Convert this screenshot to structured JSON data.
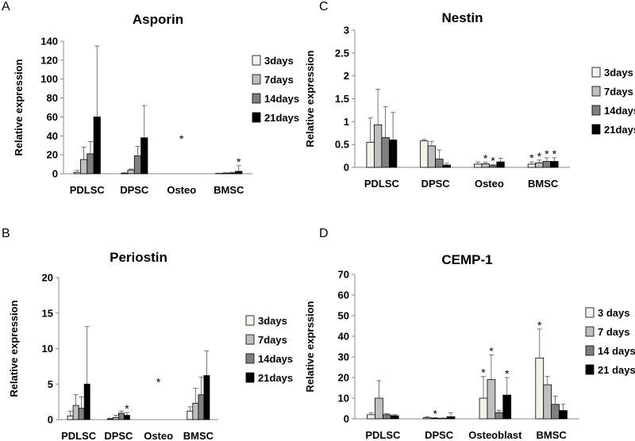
{
  "series_colors": [
    "#f2f2e8",
    "#bfbfbf",
    "#7f7f7f",
    "#000000"
  ],
  "chart_data": [
    {
      "panel_label": "A",
      "type": "bar",
      "title": "Asporin",
      "ylabel": "Relative expression",
      "ylim": [
        0,
        140
      ],
      "yticks": [
        0,
        20,
        40,
        60,
        80,
        100,
        120,
        140
      ],
      "categories": [
        "PDLSC",
        "DPSC",
        "Osteo",
        "BMSC"
      ],
      "series": [
        {
          "name": "3days",
          "values": [
            1.5,
            0.5,
            0,
            0.3
          ],
          "errors": [
            2,
            0.5,
            0,
            0.3
          ]
        },
        {
          "name": "7days",
          "values": [
            15,
            4,
            0,
            0.5
          ],
          "errors": [
            13,
            1,
            0,
            0.5
          ]
        },
        {
          "name": "14days",
          "values": [
            21,
            19,
            0,
            0.8
          ],
          "errors": [
            13,
            10,
            0,
            0.7
          ]
        },
        {
          "name": "21days",
          "values": [
            60,
            38,
            0,
            2.5
          ],
          "errors": [
            75,
            34,
            0,
            6
          ]
        }
      ],
      "annotations": [
        {
          "category": "Osteo",
          "text": "*"
        },
        {
          "category": "BMSC",
          "series": 3,
          "text": "*"
        }
      ]
    },
    {
      "panel_label": "C",
      "type": "bar",
      "title": "Nestin",
      "ylabel": "Relative expression",
      "ylim": [
        0,
        3
      ],
      "yticks": [
        "0",
        "0.5",
        "1",
        "1.5",
        "2",
        "2.5",
        "3"
      ],
      "categories": [
        "PDLSC",
        "DPSC",
        "Osteo",
        "BMSC"
      ],
      "series": [
        {
          "name": "3days",
          "values": [
            0.55,
            0.58,
            0.07,
            0.07
          ],
          "errors": [
            0.53,
            0.03,
            0.05,
            0.05
          ]
        },
        {
          "name": "7days",
          "values": [
            0.93,
            0.47,
            0.08,
            0.1
          ],
          "errors": [
            0.78,
            0.1,
            0.03,
            0.06
          ]
        },
        {
          "name": "14days",
          "values": [
            0.65,
            0.18,
            0.04,
            0.13
          ],
          "errors": [
            0.68,
            0.2,
            0.02,
            0.08
          ]
        },
        {
          "name": "21days",
          "values": [
            0.6,
            0.05,
            0.12,
            0.13
          ],
          "errors": [
            0.6,
            0.04,
            0.08,
            0.08
          ]
        }
      ],
      "annotations": [
        {
          "category": "Osteo",
          "series": 1,
          "text": "*"
        },
        {
          "category": "Osteo",
          "series": 2,
          "text": "*"
        },
        {
          "category": "BMSC",
          "series": 0,
          "text": "*"
        },
        {
          "category": "BMSC",
          "series": 1,
          "text": "*"
        },
        {
          "category": "BMSC",
          "series": 2,
          "text": "*"
        },
        {
          "category": "BMSC",
          "series": 3,
          "text": "*"
        }
      ]
    },
    {
      "panel_label": "B",
      "type": "bar",
      "title": "Periostin",
      "ylabel": "Relative expression",
      "ylim": [
        0,
        20
      ],
      "yticks": [
        0,
        5,
        10,
        15,
        20
      ],
      "categories": [
        "PDLSC",
        "DPSC",
        "Osteo",
        "BMSC"
      ],
      "series": [
        {
          "name": "3days",
          "values": [
            0.5,
            0.1,
            0,
            1.2
          ],
          "errors": [
            0.7,
            0.1,
            0,
            0.6
          ]
        },
        {
          "name": "7days",
          "values": [
            2.0,
            0.3,
            0,
            2.3
          ],
          "errors": [
            1.5,
            0.3,
            0,
            2.1
          ]
        },
        {
          "name": "14days",
          "values": [
            1.6,
            0.9,
            0,
            3.5
          ],
          "errors": [
            1.6,
            0.3,
            0,
            2.5
          ]
        },
        {
          "name": "21days",
          "values": [
            5.0,
            0.6,
            0,
            6.2
          ],
          "errors": [
            8.1,
            0.4,
            0,
            3.5
          ]
        }
      ],
      "annotations": [
        {
          "category": "DPSC",
          "series": 3,
          "text": "*"
        },
        {
          "category": "Osteo",
          "text": "*"
        }
      ]
    },
    {
      "panel_label": "D",
      "type": "bar",
      "title": "CEMP-1",
      "ylabel": "Relative exprssion",
      "ylim": [
        0,
        70
      ],
      "yticks": [
        0,
        10,
        20,
        30,
        40,
        50,
        60,
        70
      ],
      "categories": [
        "PDLSC",
        "DPSC",
        "Osteoblast",
        "BMSC"
      ],
      "series": [
        {
          "name": "3 days",
          "values": [
            2.0,
            0.5,
            10,
            29.5
          ],
          "errors": [
            1,
            0.5,
            10.5,
            14
          ]
        },
        {
          "name": "7 days",
          "values": [
            10,
            0.3,
            19,
            16.5
          ],
          "errors": [
            8.5,
            0.3,
            12,
            4
          ]
        },
        {
          "name": "14 days",
          "values": [
            2.0,
            0.2,
            3,
            7
          ],
          "errors": [
            0.5,
            0.2,
            1,
            4
          ]
        },
        {
          "name": "21 days",
          "values": [
            1.5,
            1.0,
            11.5,
            4
          ],
          "errors": [
            0.5,
            2,
            8.5,
            3
          ]
        }
      ],
      "annotations": [
        {
          "category": "DPSC",
          "series": 1,
          "text": "*"
        },
        {
          "category": "Osteoblast",
          "series": 0,
          "text": "*"
        },
        {
          "category": "Osteoblast",
          "series": 1,
          "text": "*"
        },
        {
          "category": "Osteoblast",
          "series": 3,
          "text": "*"
        },
        {
          "category": "BMSC",
          "series": 0,
          "text": "*"
        }
      ]
    }
  ]
}
